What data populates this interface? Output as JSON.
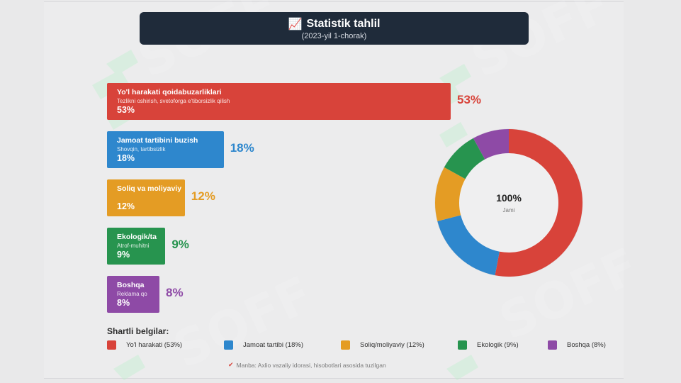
{
  "header": {
    "icon": "chart-increasing-icon",
    "title": "Statistik tahlil",
    "subtitle": "(2023-yil 1-chorak)"
  },
  "chart_data": {
    "type": "bar",
    "categories": [
      "Yo'l harakati qoidabuzarliklari",
      "Jamoat tartibini buzish",
      "Soliq va moliyaviy",
      "Ekologik",
      "Boshqa"
    ],
    "values": [
      53,
      18,
      12,
      9,
      8
    ],
    "unit": "%",
    "xlim": [
      0,
      100
    ],
    "title": "Statistik tahlil",
    "subtitle": "(2023-yil 1-chorak)",
    "legend_placement": "bottom",
    "grid": false,
    "bars": [
      {
        "label": "Yo'l harakati qoidabuzarliklari",
        "desc": "Tezlikni oshirish, svetoforga e'tiborsizlik qilish",
        "value": 53,
        "pct_label": "53%",
        "color": "#d8433a"
      },
      {
        "label": "Jamoat tartibini buzish",
        "desc": "Shovqin, tartibsizlik",
        "value": 18,
        "pct_label": "18%",
        "color": "#2e87cd"
      },
      {
        "label": "Soliq va moliyaviy",
        "desc": "",
        "value": 12,
        "pct_label": "12%",
        "color": "#e49c24"
      },
      {
        "label": "Ekologik/ta",
        "desc": "Atrof-muhitni",
        "value": 9,
        "pct_label": "9%",
        "color": "#27944f"
      },
      {
        "label": "Boshqa",
        "desc": "Reklama qo",
        "value": 8,
        "pct_label": "8%",
        "color": "#8e4aa6"
      }
    ],
    "donut": {
      "type": "pie",
      "center_value": "100%",
      "center_label": "Jami",
      "values": [
        53,
        18,
        12,
        9,
        8
      ],
      "colors": [
        "#d8433a",
        "#2e87cd",
        "#e49c24",
        "#27944f",
        "#8e4aa6"
      ]
    }
  },
  "legend": {
    "title": "Shartli belgilar:",
    "items": [
      {
        "label": "Yo'l harakati (53%)",
        "color": "#d8433a"
      },
      {
        "label": "Jamoat tartibi (18%)",
        "color": "#2e87cd"
      },
      {
        "label": "Soliq/moliyaviy (12%)",
        "color": "#e49c24"
      },
      {
        "label": "Ekologik (9%)",
        "color": "#27944f"
      },
      {
        "label": "Boshqa (8%)",
        "color": "#8e4aa6"
      }
    ]
  },
  "footnote": {
    "icon": "pushpin-icon",
    "text": "Manba: Axlio vazaliy idorasi, hisobotlari asosida tuzilgan"
  }
}
